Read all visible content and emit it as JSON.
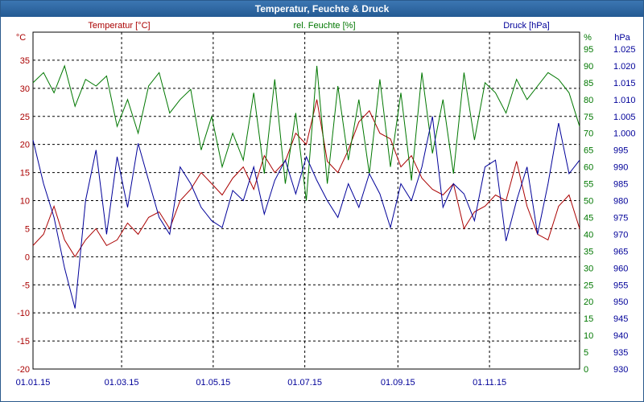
{
  "window": {
    "title": "Temperatur, Feuchte & Druck"
  },
  "colors": {
    "temperature": "#aa0000",
    "humidity": "#007700",
    "pressure": "#000099",
    "titlebar": "#2c65a0",
    "grid": "#000000"
  },
  "chart_data": {
    "type": "line",
    "title": "Temperatur, Feuchte & Druck",
    "grid": true,
    "x_labels": [
      "01.01.15",
      "01.03.15",
      "01.05.15",
      "01.07.15",
      "01.09.15",
      "01.11.15"
    ],
    "x_label_dates": [
      "2015-01-01",
      "2015-03-01",
      "2015-05-01",
      "2015-07-01",
      "2015-09-01",
      "2015-11-01"
    ],
    "x_range": [
      "2015-01-01",
      "2015-12-31"
    ],
    "axes": {
      "temperature": {
        "label": "Temperatur [°C]",
        "unit": "°C",
        "range": [
          -20,
          40
        ],
        "ticks": [
          "-20",
          "-15",
          "-10",
          "-5",
          "0",
          "5",
          "10",
          "15",
          "20",
          "25",
          "30",
          "35"
        ]
      },
      "humidity": {
        "label": "rel. Feuchte [%]",
        "unit": "%",
        "range": [
          0,
          100
        ],
        "ticks": [
          "0",
          "5",
          "10",
          "15",
          "20",
          "25",
          "30",
          "35",
          "40",
          "45",
          "50",
          "55",
          "60",
          "65",
          "70",
          "75",
          "80",
          "85",
          "90",
          "95"
        ]
      },
      "pressure": {
        "label": "Druck [hPa]",
        "unit": "hPa",
        "range": [
          930,
          1030
        ],
        "ticks": [
          "930",
          "935",
          "940",
          "945",
          "950",
          "955",
          "960",
          "965",
          "970",
          "975",
          "980",
          "985",
          "990",
          "995",
          "1.000",
          "1.005",
          "1.010",
          "1.015",
          "1.020",
          "1.025"
        ]
      }
    },
    "series": [
      {
        "name": "Temperatur [°C]",
        "axis": "temperature",
        "color": "#aa0000",
        "x": [
          "2015-01-01",
          "2015-01-08",
          "2015-01-15",
          "2015-01-22",
          "2015-01-29",
          "2015-02-05",
          "2015-02-12",
          "2015-02-19",
          "2015-02-26",
          "2015-03-05",
          "2015-03-12",
          "2015-03-19",
          "2015-03-26",
          "2015-04-02",
          "2015-04-09",
          "2015-04-16",
          "2015-04-23",
          "2015-04-30",
          "2015-05-07",
          "2015-05-14",
          "2015-05-21",
          "2015-05-28",
          "2015-06-04",
          "2015-06-11",
          "2015-06-18",
          "2015-06-25",
          "2015-07-02",
          "2015-07-09",
          "2015-07-16",
          "2015-07-23",
          "2015-07-30",
          "2015-08-06",
          "2015-08-13",
          "2015-08-20",
          "2015-08-27",
          "2015-09-03",
          "2015-09-10",
          "2015-09-17",
          "2015-09-24",
          "2015-10-01",
          "2015-10-08",
          "2015-10-15",
          "2015-10-22",
          "2015-10-29",
          "2015-11-05",
          "2015-11-12",
          "2015-11-19",
          "2015-11-26",
          "2015-12-03",
          "2015-12-10",
          "2015-12-17",
          "2015-12-24",
          "2015-12-31"
        ],
        "values": [
          2,
          4,
          9,
          3,
          0,
          3,
          5,
          2,
          3,
          6,
          4,
          7,
          8,
          5,
          10,
          12,
          15,
          13,
          11,
          14,
          16,
          12,
          18,
          15,
          17,
          22,
          20,
          28,
          17,
          15,
          19,
          24,
          26,
          22,
          21,
          16,
          18,
          14,
          12,
          11,
          13,
          5,
          8,
          9,
          11,
          10,
          17,
          9,
          4,
          3,
          9,
          11,
          5
        ]
      },
      {
        "name": "rel. Feuchte [%]",
        "axis": "humidity",
        "color": "#007700",
        "x": [
          "2015-01-01",
          "2015-01-08",
          "2015-01-15",
          "2015-01-22",
          "2015-01-29",
          "2015-02-05",
          "2015-02-12",
          "2015-02-19",
          "2015-02-26",
          "2015-03-05",
          "2015-03-12",
          "2015-03-19",
          "2015-03-26",
          "2015-04-02",
          "2015-04-09",
          "2015-04-16",
          "2015-04-23",
          "2015-04-30",
          "2015-05-07",
          "2015-05-14",
          "2015-05-21",
          "2015-05-28",
          "2015-06-04",
          "2015-06-11",
          "2015-06-18",
          "2015-06-25",
          "2015-07-02",
          "2015-07-09",
          "2015-07-16",
          "2015-07-23",
          "2015-07-30",
          "2015-08-06",
          "2015-08-13",
          "2015-08-20",
          "2015-08-27",
          "2015-09-03",
          "2015-09-10",
          "2015-09-17",
          "2015-09-24",
          "2015-10-01",
          "2015-10-08",
          "2015-10-15",
          "2015-10-22",
          "2015-10-29",
          "2015-11-05",
          "2015-11-12",
          "2015-11-19",
          "2015-11-26",
          "2015-12-03",
          "2015-12-10",
          "2015-12-17",
          "2015-12-24",
          "2015-12-31"
        ],
        "values": [
          85,
          88,
          82,
          90,
          78,
          86,
          84,
          87,
          72,
          80,
          70,
          84,
          88,
          76,
          80,
          83,
          65,
          75,
          60,
          70,
          62,
          82,
          58,
          86,
          55,
          76,
          50,
          90,
          55,
          84,
          62,
          80,
          58,
          86,
          60,
          82,
          56,
          88,
          64,
          80,
          58,
          88,
          68,
          85,
          82,
          76,
          86,
          80,
          84,
          88,
          86,
          82,
          72
        ]
      },
      {
        "name": "Druck [hPa]",
        "axis": "pressure",
        "color": "#000099",
        "x": [
          "2015-01-01",
          "2015-01-08",
          "2015-01-15",
          "2015-01-22",
          "2015-01-29",
          "2015-02-05",
          "2015-02-12",
          "2015-02-19",
          "2015-02-26",
          "2015-03-05",
          "2015-03-12",
          "2015-03-19",
          "2015-03-26",
          "2015-04-02",
          "2015-04-09",
          "2015-04-16",
          "2015-04-23",
          "2015-04-30",
          "2015-05-07",
          "2015-05-14",
          "2015-05-21",
          "2015-05-28",
          "2015-06-04",
          "2015-06-11",
          "2015-06-18",
          "2015-06-25",
          "2015-07-02",
          "2015-07-09",
          "2015-07-16",
          "2015-07-23",
          "2015-07-30",
          "2015-08-06",
          "2015-08-13",
          "2015-08-20",
          "2015-08-27",
          "2015-09-03",
          "2015-09-10",
          "2015-09-17",
          "2015-09-24",
          "2015-10-01",
          "2015-10-08",
          "2015-10-15",
          "2015-10-22",
          "2015-10-29",
          "2015-11-05",
          "2015-11-12",
          "2015-11-19",
          "2015-11-26",
          "2015-12-03",
          "2015-12-10",
          "2015-12-17",
          "2015-12-24",
          "2015-12-31"
        ],
        "values": [
          998,
          985,
          975,
          960,
          948,
          980,
          995,
          970,
          993,
          978,
          997,
          986,
          975,
          970,
          990,
          985,
          978,
          974,
          972,
          983,
          980,
          990,
          976,
          986,
          992,
          982,
          993,
          986,
          980,
          975,
          985,
          978,
          988,
          982,
          972,
          985,
          980,
          990,
          1005,
          978,
          985,
          982,
          974,
          990,
          992,
          968,
          980,
          990,
          970,
          985,
          1003,
          988,
          992
        ]
      }
    ]
  }
}
